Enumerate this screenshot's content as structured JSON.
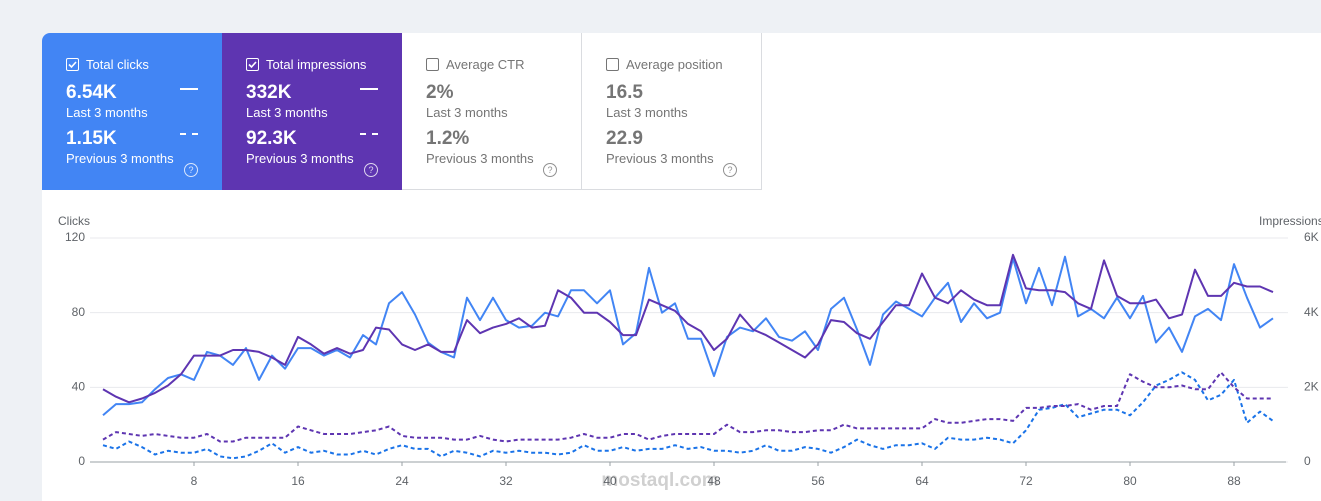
{
  "cards": [
    {
      "title": "Total clicks",
      "value": "6.54K",
      "period": "Last 3 months",
      "prev_value": "1.15K",
      "prev_period": "Previous 3 months",
      "checked": true,
      "color": "#4285f4"
    },
    {
      "title": "Total impressions",
      "value": "332K",
      "period": "Last 3 months",
      "prev_value": "92.3K",
      "prev_period": "Previous 3 months",
      "checked": true,
      "color": "#5e35b1"
    },
    {
      "title": "Average CTR",
      "value": "2%",
      "period": "Last 3 months",
      "prev_value": "1.2%",
      "prev_period": "Previous 3 months",
      "checked": false,
      "color": "#ffffff"
    },
    {
      "title": "Average position",
      "value": "16.5",
      "period": "Last 3 months",
      "prev_value": "22.9",
      "prev_period": "Previous 3 months",
      "checked": false,
      "color": "#ffffff"
    }
  ],
  "watermark": "mostaql.com",
  "chart_data": {
    "type": "line",
    "y_label": "Clicks",
    "y2_label": "Impressions",
    "x": [
      1,
      2,
      3,
      4,
      5,
      6,
      7,
      8,
      9,
      10,
      11,
      12,
      13,
      14,
      15,
      16,
      17,
      18,
      19,
      20,
      21,
      22,
      23,
      24,
      25,
      26,
      27,
      28,
      29,
      30,
      31,
      32,
      33,
      34,
      35,
      36,
      37,
      38,
      39,
      40,
      41,
      42,
      43,
      44,
      45,
      46,
      47,
      48,
      49,
      50,
      51,
      52,
      53,
      54,
      55,
      56,
      57,
      58,
      59,
      60,
      61,
      62,
      63,
      64,
      65,
      66,
      67,
      68,
      69,
      70,
      71,
      72,
      73,
      74,
      75,
      76,
      77,
      78,
      79,
      80,
      81,
      82,
      83,
      84,
      85,
      86,
      87,
      88,
      89,
      90,
      91
    ],
    "xlim": [
      0,
      92
    ],
    "xticks": [
      8,
      16,
      24,
      32,
      40,
      48,
      56,
      64,
      72,
      80,
      88
    ],
    "ylim": [
      0,
      120
    ],
    "yticks": [
      0,
      40,
      80,
      120
    ],
    "y2lim": [
      0,
      6000
    ],
    "y2ticks": [
      0,
      {
        "value": 2000,
        "label": "2K"
      },
      {
        "value": 4000,
        "label": "4K"
      },
      {
        "value": 6000,
        "label": "6K"
      }
    ],
    "grid": true,
    "series": [
      {
        "color": "#1a73e8",
        "style": "dashed",
        "axis": "y",
        "values": [
          9,
          7,
          11,
          8,
          4,
          6,
          5,
          5,
          7,
          3,
          2,
          3,
          6,
          10,
          5,
          8,
          5,
          6,
          4,
          4,
          6,
          4,
          7,
          9,
          7,
          7,
          3,
          6,
          5,
          3,
          6,
          5,
          6,
          5,
          5,
          4,
          5,
          9,
          6,
          6,
          8,
          6,
          7,
          7,
          9,
          7,
          8,
          6,
          6,
          5,
          6,
          9,
          6,
          6,
          8,
          7,
          5,
          8,
          12,
          9,
          7,
          9,
          9,
          10,
          7,
          13,
          12,
          12,
          13,
          12,
          10,
          17,
          28,
          29,
          31,
          24,
          26,
          28,
          28,
          25,
          32,
          41,
          44,
          48,
          44,
          33,
          36,
          44,
          21,
          27,
          22
        ]
      },
      {
        "color": "#5e35b1",
        "style": "dashed",
        "axis": "y2",
        "values": [
          600,
          800,
          750,
          700,
          750,
          700,
          650,
          650,
          750,
          550,
          550,
          650,
          650,
          650,
          650,
          950,
          850,
          750,
          750,
          750,
          800,
          850,
          950,
          700,
          650,
          650,
          650,
          600,
          600,
          700,
          600,
          550,
          600,
          600,
          600,
          600,
          650,
          750,
          650,
          650,
          750,
          750,
          600,
          700,
          750,
          750,
          750,
          750,
          1000,
          800,
          800,
          850,
          850,
          800,
          800,
          850,
          850,
          1000,
          900,
          900,
          900,
          900,
          900,
          900,
          1150,
          1050,
          1050,
          1100,
          1150,
          1150,
          1100,
          1450,
          1450,
          1500,
          1500,
          1550,
          1400,
          1500,
          1500,
          2350,
          2150,
          2000,
          2000,
          2050,
          1950,
          1950,
          2400,
          2000,
          1700,
          1700,
          1700
        ]
      },
      {
        "color": "#4285f4",
        "style": "solid",
        "axis": "y",
        "values": [
          25,
          31,
          31,
          32,
          39,
          45,
          47,
          44,
          59,
          57,
          52,
          61,
          44,
          57,
          50,
          61,
          61,
          57,
          60,
          56,
          68,
          63,
          85,
          91,
          79,
          64,
          59,
          56,
          88,
          76,
          88,
          76,
          72,
          73,
          80,
          78,
          92,
          92,
          85,
          92,
          63,
          69,
          104,
          80,
          85,
          66,
          66,
          46,
          67,
          72,
          70,
          77,
          67,
          65,
          70,
          60,
          82,
          88,
          71,
          52,
          79,
          86,
          82,
          78,
          88,
          96,
          75,
          85,
          77,
          80,
          109,
          85,
          104,
          84,
          110,
          78,
          82,
          77,
          88,
          77,
          89,
          64,
          72,
          59,
          78,
          82,
          76,
          106,
          88,
          72,
          77
        ]
      },
      {
        "color": "#5e35b1",
        "style": "solid",
        "axis": "y2",
        "values": [
          1950,
          1750,
          1600,
          1700,
          1850,
          2050,
          2350,
          2850,
          2850,
          2850,
          3000,
          3000,
          2950,
          2800,
          2600,
          3350,
          3150,
          2900,
          3050,
          2900,
          3000,
          3600,
          3550,
          3150,
          3000,
          3150,
          2950,
          2950,
          3800,
          3450,
          3600,
          3700,
          3850,
          3600,
          3650,
          4600,
          4400,
          4000,
          4000,
          3750,
          3400,
          3400,
          4350,
          4200,
          4050,
          3700,
          3500,
          3000,
          3300,
          3950,
          3550,
          3400,
          3200,
          3000,
          2800,
          3150,
          3800,
          3750,
          3450,
          3300,
          3750,
          4200,
          4200,
          5050,
          4400,
          4250,
          4600,
          4350,
          4200,
          4200,
          5550,
          4650,
          4600,
          4600,
          4550,
          4250,
          4100,
          5400,
          4450,
          4250,
          4250,
          4350,
          3850,
          3950,
          5150,
          4450,
          4450,
          4800,
          4700,
          4700,
          4550
        ]
      }
    ]
  }
}
